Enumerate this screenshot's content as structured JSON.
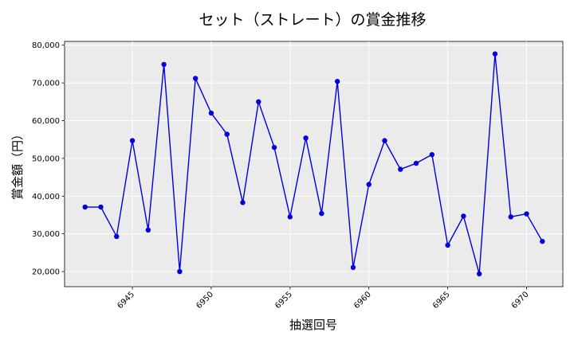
{
  "chart_data": {
    "type": "line",
    "title": "セット（ストレート）の賞金推移",
    "xlabel": "抽選回号",
    "ylabel": "賞金額（円）",
    "xlim": [
      6940.7,
      6972.3
    ],
    "ylim": [
      16000,
      81000
    ],
    "x_ticks": [
      6945,
      6950,
      6955,
      6960,
      6965,
      6970
    ],
    "y_ticks": [
      20000,
      30000,
      40000,
      50000,
      60000,
      70000,
      80000
    ],
    "y_tick_labels": [
      "20,000",
      "30,000",
      "40,000",
      "50,000",
      "60,000",
      "70,000",
      "80,000"
    ],
    "grid": true,
    "series": [
      {
        "color": "#0000dd",
        "x": [
          6942,
          6943,
          6944,
          6945,
          6946,
          6947,
          6948,
          6949,
          6950,
          6951,
          6952,
          6953,
          6954,
          6955,
          6956,
          6957,
          6958,
          6959,
          6960,
          6961,
          6962,
          6963,
          6964,
          6965,
          6966,
          6967,
          6968,
          6969,
          6970,
          6971
        ],
        "values": [
          37100,
          37100,
          29300,
          54700,
          31000,
          74900,
          20000,
          71200,
          62000,
          56400,
          38300,
          65000,
          52900,
          34500,
          55400,
          35400,
          70400,
          21100,
          43100,
          54700,
          47100,
          48700,
          51000,
          27000,
          34700,
          19400,
          77700,
          34500,
          35300,
          28000
        ]
      }
    ]
  }
}
